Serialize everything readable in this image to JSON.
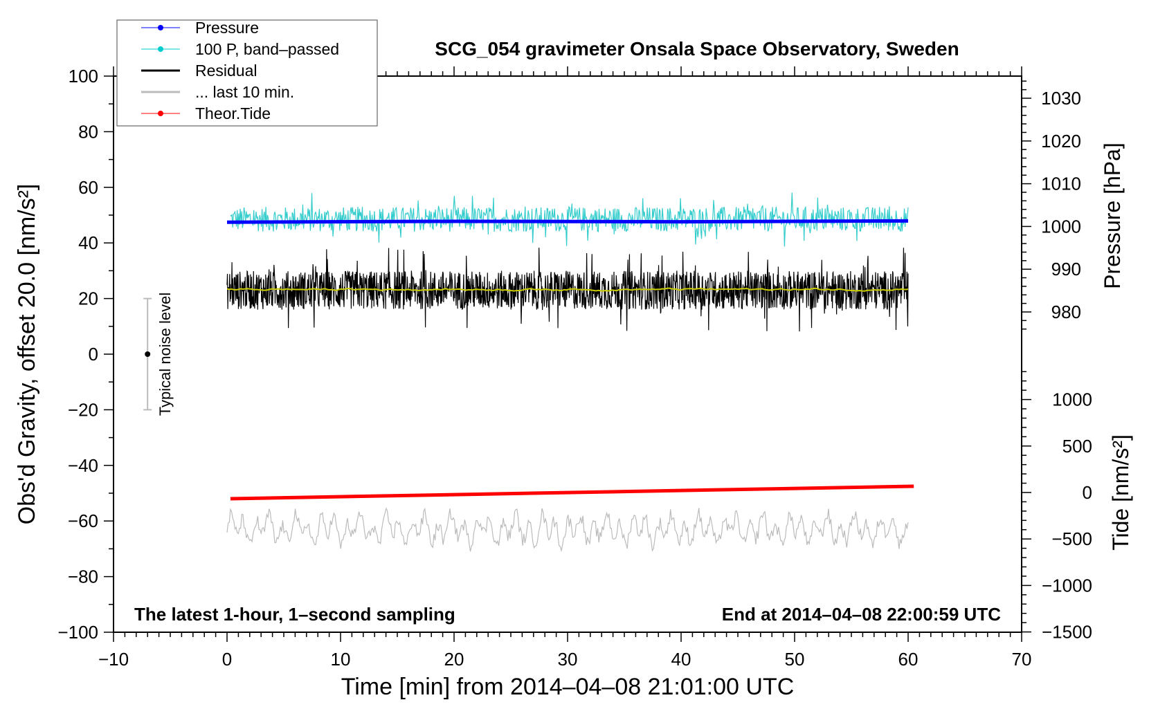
{
  "chart_data": {
    "type": "line",
    "title": "SCG_054 gravimeter Onsala Space Observatory, Sweden",
    "xlabel": "Time [min] from 2014–04–08 21:01:00 UTC",
    "ylabel_left": "Obs'd Gravity, offset 20.0 [nm/s²]",
    "ylabel_right_pressure": "Pressure [hPa]",
    "ylabel_right_tide": "Tide [nm/s²]",
    "xlim": [
      -10,
      70
    ],
    "ylim": [
      -100,
      100
    ],
    "pressure_lim": [
      980,
      1030
    ],
    "tide_lim": [
      -1500,
      1000
    ],
    "x_ticks": [
      -10,
      0,
      10,
      20,
      30,
      40,
      50,
      60,
      70
    ],
    "x_tick_labels": [
      "−10",
      "0",
      "10",
      "20",
      "30",
      "40",
      "50",
      "60",
      "70"
    ],
    "y_ticks": [
      100,
      80,
      60,
      40,
      20,
      0,
      -20,
      -40,
      -60,
      -80,
      -100
    ],
    "y_tick_labels": [
      "100",
      "80",
      "60",
      "40",
      "20",
      "0",
      "−20",
      "−40",
      "−60",
      "−80",
      "−100"
    ],
    "pressure_ticks": [
      1030,
      1020,
      1010,
      1000,
      990,
      980
    ],
    "pressure_tick_labels": [
      "1030",
      "1020",
      "1010",
      "1000",
      "990",
      "980"
    ],
    "tide_ticks": [
      1000,
      500,
      0,
      -500,
      -1000,
      -1500
    ],
    "tide_tick_labels": [
      "1000",
      "500",
      "0",
      "−500",
      "−1000",
      "−1500"
    ],
    "annotation_left": "The latest 1-hour, 1–second sampling",
    "annotation_right": "End at 2014–04–08 22:00:59 UTC",
    "noise_label": "Typical noise level",
    "noise_bar": {
      "x": -7,
      "center": 0,
      "low": -20,
      "high": 20
    },
    "legend": {
      "placement": "top-left",
      "entries": [
        {
          "label": "Pressure",
          "color": "#0000ff",
          "marker": true
        },
        {
          "label": "100 P, band–passed",
          "color": "#00cccc",
          "marker": true
        },
        {
          "label": "Residual",
          "color": "#000000",
          "marker": false
        },
        {
          "label": "... last 10 min.",
          "color": "#bbbbbb",
          "marker": false
        },
        {
          "label": "Theor.Tide",
          "color": "#ff0000",
          "marker": true
        }
      ]
    },
    "series": [
      {
        "name": "Pressure",
        "axis": "pressure",
        "color": "#0000ff",
        "x": [
          0,
          20,
          40,
          60
        ],
        "y": [
          1001.0,
          1001.2,
          1001.1,
          1001.3
        ]
      },
      {
        "name": "100 P, band-passed",
        "axis": "left",
        "color": "#33cccc",
        "x_range": [
          0.3,
          60
        ],
        "mean": 48.5,
        "amplitude": 4.5,
        "samples": 900
      },
      {
        "name": "Residual",
        "axis": "left",
        "color": "#000000",
        "x_range": [
          0,
          60
        ],
        "mean": 23,
        "amplitude": 7,
        "samples": 1800
      },
      {
        "name": "Residual smoothed",
        "axis": "left",
        "color": "#cccc00",
        "x_range": [
          0,
          60
        ],
        "mean": 23.3,
        "amplitude": 0.8,
        "samples": 300
      },
      {
        "name": "... last 10 min.",
        "axis": "left",
        "color": "#bbbbbb",
        "x_range": [
          0,
          60
        ],
        "mean": -63,
        "amplitude": 6,
        "samples": 600
      },
      {
        "name": "Theor.Tide",
        "axis": "tide",
        "color": "#ff0000",
        "x": [
          0.3,
          60.5
        ],
        "y": [
          -67,
          67
        ]
      }
    ]
  }
}
